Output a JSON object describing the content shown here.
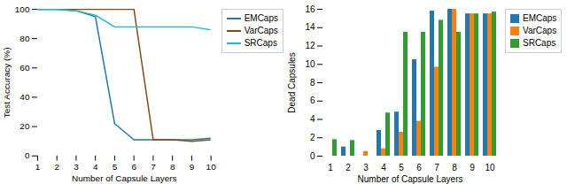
{
  "chart_data": [
    {
      "type": "line",
      "x": [
        1,
        2,
        3,
        4,
        5,
        6,
        7,
        8,
        9,
        10
      ],
      "series": [
        {
          "name": "EMCaps",
          "color": "#1f77b4",
          "values": [
            100,
            100,
            99,
            95,
            22,
            11,
            11,
            11,
            11,
            12
          ]
        },
        {
          "name": "VarCaps",
          "color": "#8B4513",
          "values": [
            100,
            100,
            100,
            100,
            100,
            100,
            11,
            11,
            10,
            11
          ]
        },
        {
          "name": "SRCaps",
          "color": "#17becf",
          "values": [
            100,
            100,
            99,
            96,
            88,
            88,
            88,
            88,
            88,
            86
          ]
        }
      ],
      "xlabel": "Number of Capsule Layers",
      "ylabel": "Test Accuracy (%)",
      "xlim": [
        1,
        10
      ],
      "xticks": [
        1,
        2,
        3,
        4,
        5,
        6,
        7,
        8,
        9,
        10
      ],
      "ylim": [
        0,
        100
      ],
      "yticks": [
        0,
        20,
        40,
        60,
        80,
        100
      ],
      "grid": false,
      "legend": "right"
    },
    {
      "type": "bar",
      "categories": [
        1,
        2,
        3,
        4,
        5,
        6,
        7,
        8,
        9,
        10
      ],
      "series": [
        {
          "name": "EMCaps",
          "color": "#1f77b4",
          "values": [
            0,
            1,
            0,
            2.8,
            4.8,
            10.5,
            15.8,
            16,
            15.5,
            15.5
          ]
        },
        {
          "name": "VarCaps",
          "color": "#ff7f0e",
          "values": [
            0,
            0,
            0.5,
            0.8,
            2.6,
            3.8,
            9.7,
            16,
            15.5,
            15.5
          ]
        },
        {
          "name": "SRCaps",
          "color": "#2ca02c",
          "values": [
            1.8,
            1.7,
            0,
            4.7,
            13.5,
            13.5,
            14.8,
            13.5,
            15.5,
            15.7
          ]
        }
      ],
      "xlabel": "Number of Capsule Layers",
      "ylabel": "Dead Capsules",
      "ylim": [
        0,
        16
      ],
      "yticks": [
        0,
        2,
        4,
        6,
        8,
        10,
        12,
        14,
        16
      ],
      "grid": false,
      "legend": "right"
    }
  ]
}
